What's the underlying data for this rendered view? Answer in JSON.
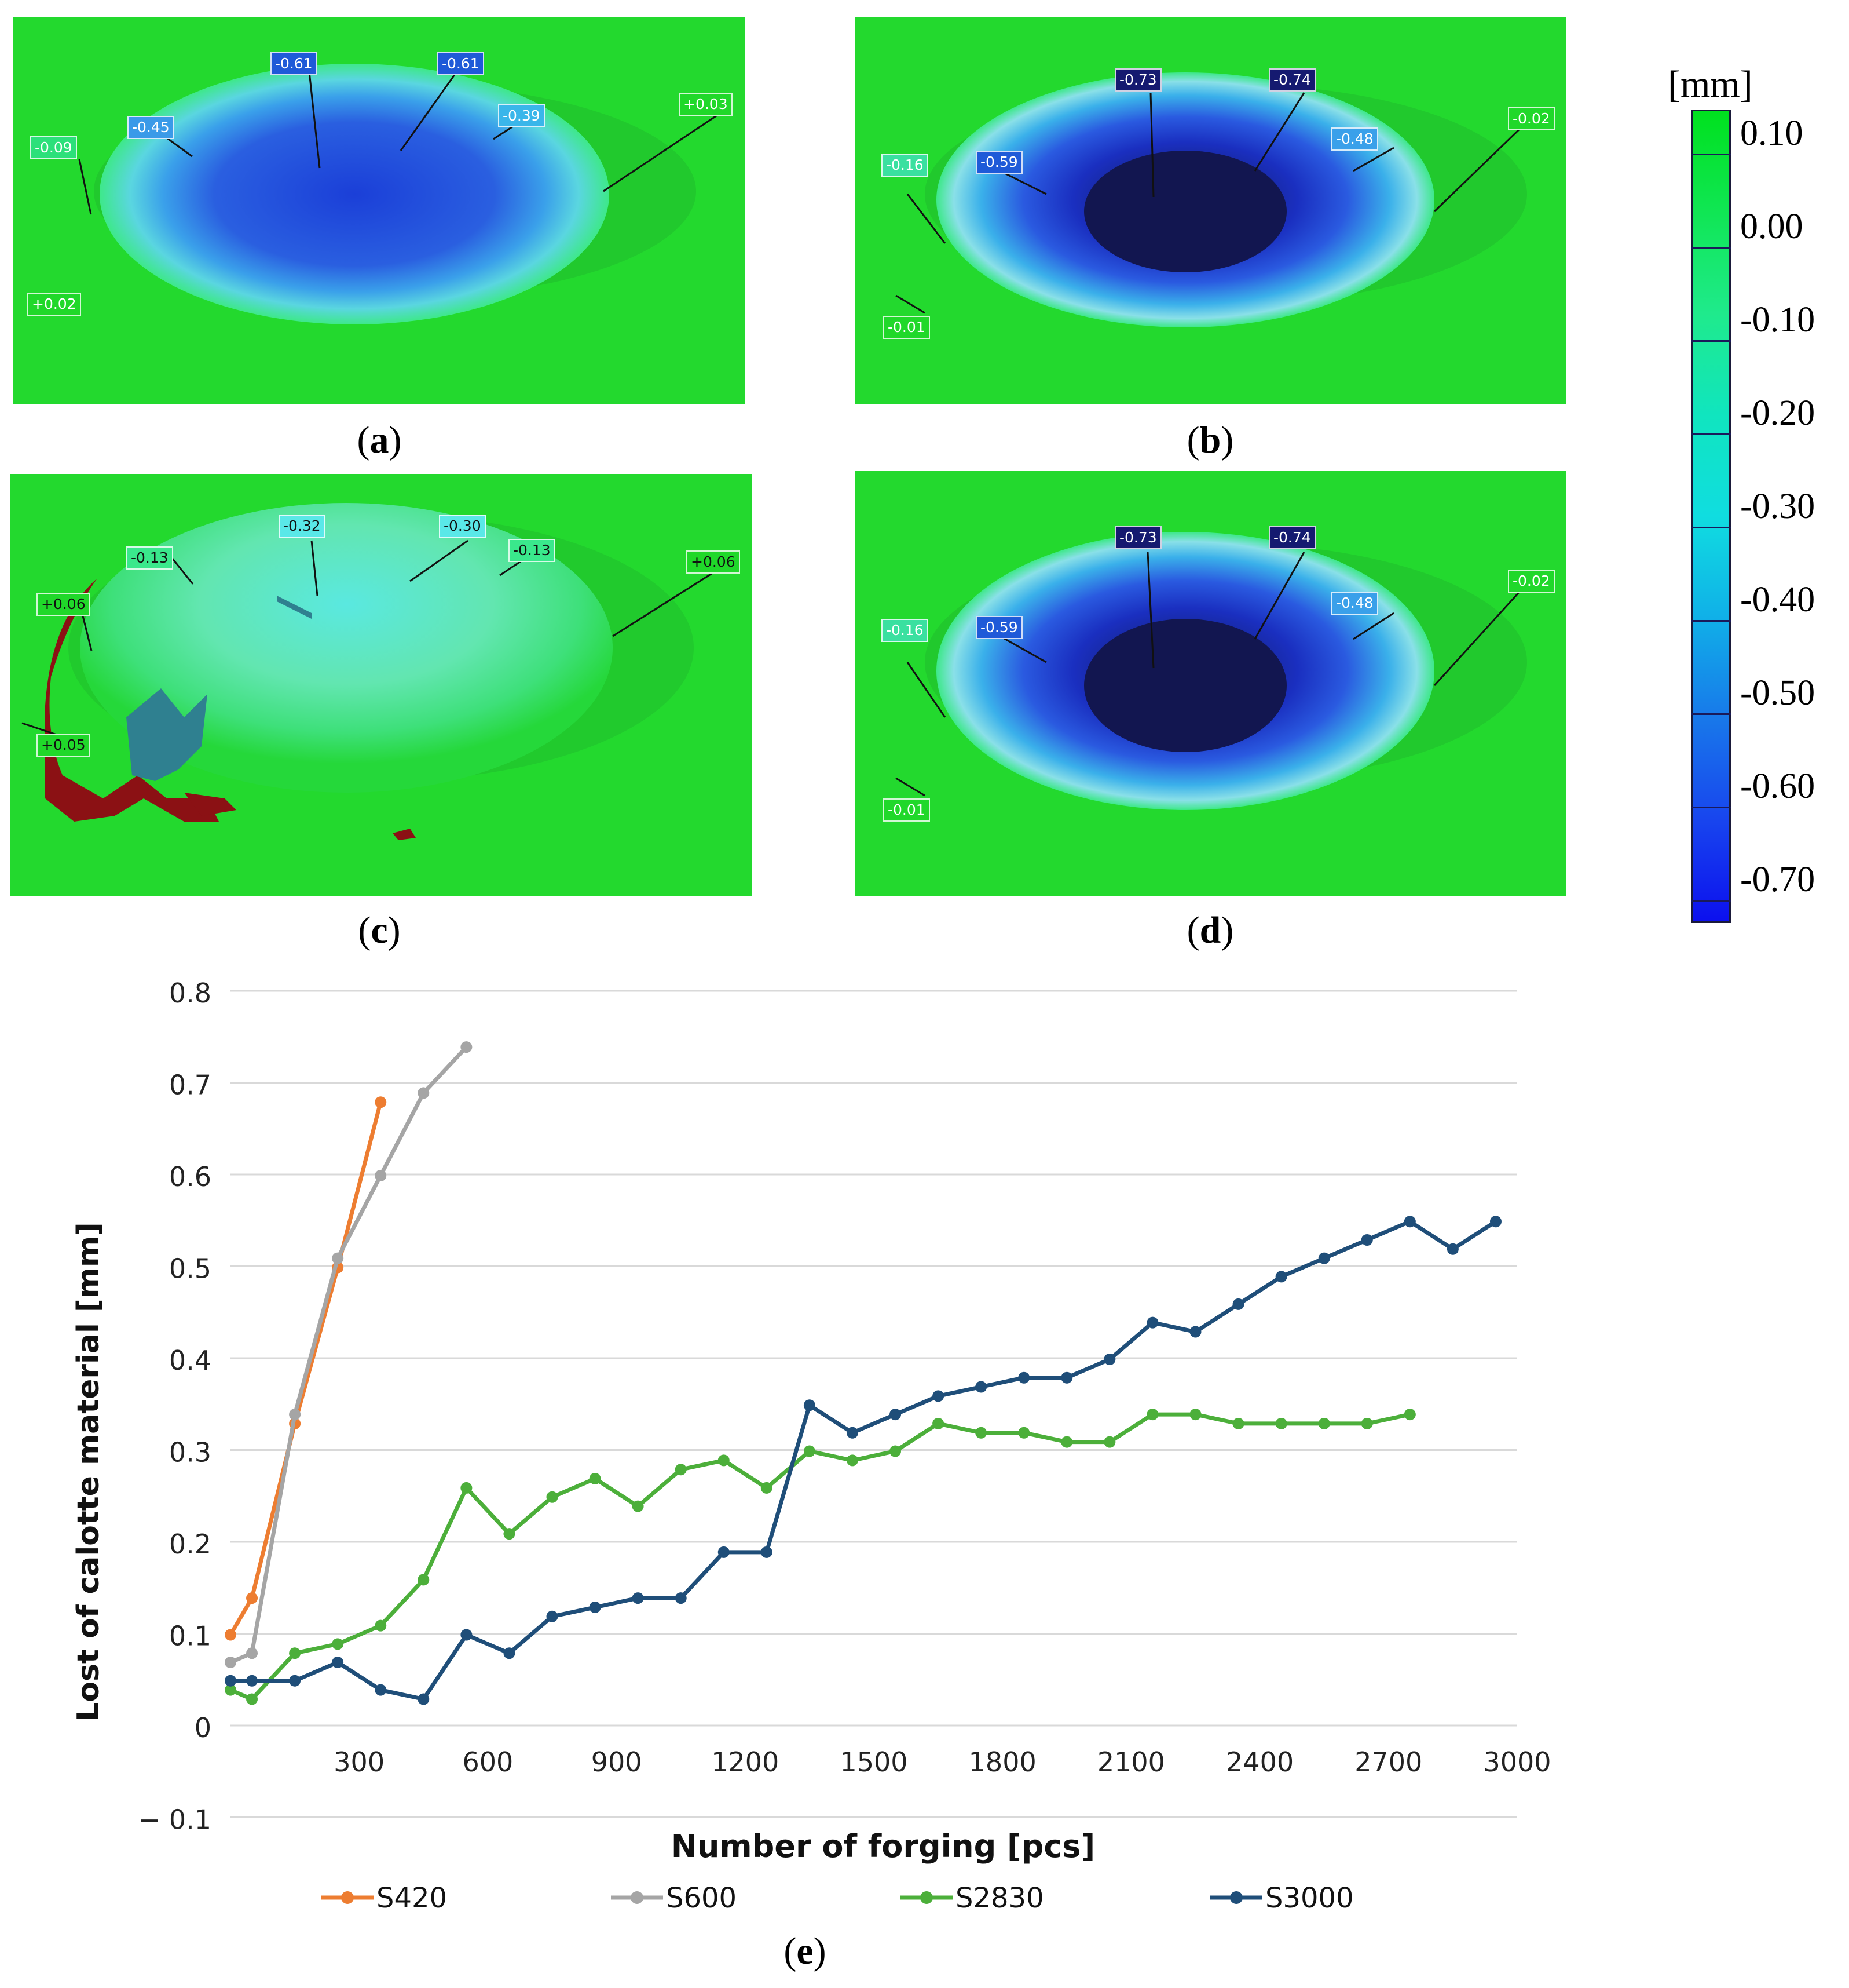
{
  "colorbar": {
    "unit": "[mm]",
    "labels": [
      "0.10",
      "0.00",
      "-0.10",
      "-0.20",
      "-0.30",
      "-0.40",
      "-0.50",
      "-0.60",
      "-0.70"
    ],
    "colors": [
      "#00e11e",
      "#10e654",
      "#1fea8c",
      "#10e5bf",
      "#10dde0",
      "#10b0e8",
      "#1878ea",
      "#1845ee",
      "#0c10ee"
    ]
  },
  "panels": {
    "a": {
      "caption": "a",
      "tags": [
        "-0.61",
        "-0.61",
        "-0.45",
        "-0.39",
        "-0.09",
        "+0.03",
        "+0.02"
      ]
    },
    "b": {
      "caption": "b",
      "tags": [
        "-0.73",
        "-0.74",
        "-0.59",
        "-0.48",
        "-0.16",
        "-0.02",
        "-0.01"
      ]
    },
    "c": {
      "caption": "c",
      "tags": [
        "-0.32",
        "-0.30",
        "-0.13",
        "-0.13",
        "+0.06",
        "+0.06",
        "+0.05"
      ]
    },
    "d": {
      "caption": "d",
      "tags": [
        "-0.73",
        "-0.74",
        "-0.59",
        "-0.48",
        "-0.16",
        "-0.02",
        "-0.01"
      ]
    },
    "e": {
      "caption": "e"
    }
  },
  "chart_data": {
    "type": "line",
    "xlabel": "Number of forging [pcs]",
    "ylabel": "Lost of calotte material [mm]",
    "x_ticks": [
      300,
      600,
      900,
      1200,
      1500,
      1800,
      2100,
      2400,
      2700,
      3000
    ],
    "x_tick_labels": [
      "300",
      "600",
      "900",
      "1200",
      "1500",
      "1800",
      "2100",
      "2400",
      "2700",
      "3000"
    ],
    "y_ticks": [
      -0.1,
      0,
      0.1,
      0.2,
      0.3,
      0.4,
      0.5,
      0.6,
      0.7,
      0.8
    ],
    "y_tick_labels": [
      "− 0.1",
      "0",
      "0.1",
      "0.2",
      "0.3",
      "0.4",
      "0.5",
      "0.6",
      "0.7",
      "0.8"
    ],
    "xlim": [
      0,
      3000
    ],
    "ylim": [
      -0.1,
      0.8
    ],
    "grid": true,
    "legend_position": "bottom",
    "series": [
      {
        "name": "S420",
        "color": "#ed7d31",
        "x": [
          0,
          50,
          150,
          250,
          350
        ],
        "y": [
          0.1,
          0.14,
          0.33,
          0.5,
          0.68
        ]
      },
      {
        "name": "S600",
        "color": "#a5a5a5",
        "x": [
          0,
          50,
          150,
          250,
          350,
          450,
          550
        ],
        "y": [
          0.07,
          0.08,
          0.34,
          0.51,
          0.6,
          0.69,
          0.74
        ]
      },
      {
        "name": "S2830",
        "color": "#4caf3a",
        "x": [
          0,
          50,
          150,
          250,
          350,
          450,
          550,
          650,
          750,
          850,
          950,
          1050,
          1150,
          1250,
          1350,
          1450,
          1550,
          1650,
          1750,
          1850,
          1950,
          2050,
          2150,
          2250,
          2350,
          2450,
          2550,
          2650,
          2750
        ],
        "y": [
          0.04,
          0.03,
          0.08,
          0.09,
          0.11,
          0.16,
          0.26,
          0.21,
          0.25,
          0.27,
          0.24,
          0.28,
          0.29,
          0.26,
          0.3,
          0.29,
          0.3,
          0.33,
          0.32,
          0.32,
          0.31,
          0.31,
          0.34,
          0.34,
          0.33,
          0.33,
          0.33,
          0.33,
          0.34
        ]
      },
      {
        "name": "S3000",
        "color": "#1f4e79",
        "x": [
          0,
          50,
          150,
          250,
          350,
          450,
          550,
          650,
          750,
          850,
          950,
          1050,
          1150,
          1250,
          1350,
          1450,
          1550,
          1650,
          1750,
          1850,
          1950,
          2050,
          2150,
          2250,
          2350,
          2450,
          2550,
          2650,
          2750,
          2850,
          2950
        ],
        "y": [
          0.05,
          0.05,
          0.05,
          0.07,
          0.04,
          0.03,
          0.1,
          0.08,
          0.12,
          0.13,
          0.14,
          0.14,
          0.19,
          0.19,
          0.35,
          0.32,
          0.34,
          0.36,
          0.37,
          0.38,
          0.38,
          0.4,
          0.44,
          0.43,
          0.46,
          0.49,
          0.51,
          0.53,
          0.55,
          0.52,
          0.55
        ]
      }
    ]
  }
}
